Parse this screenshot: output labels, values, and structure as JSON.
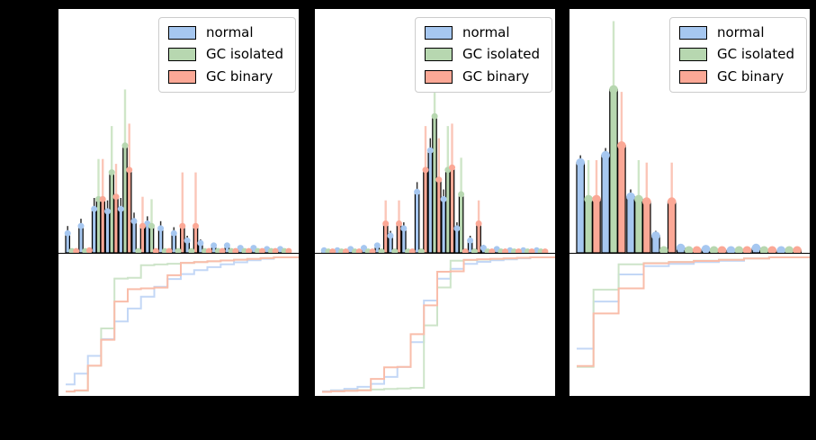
{
  "figure": {
    "background": "#000000",
    "axes_background": "#ffffff",
    "spine_color": "#000000",
    "tick_labels": "none visible (rendered black on black margins)"
  },
  "legend": {
    "position": "upper right",
    "items": [
      {
        "label": "normal",
        "color": "#a6c7f0"
      },
      {
        "label": "GC isolated",
        "color": "#b7d7b0"
      },
      {
        "label": "GC binary",
        "color": "#fba896"
      }
    ]
  },
  "colors": {
    "normal": {
      "fill": "#a6c7f0",
      "light": "#c3d7f6",
      "error": "#2f2f2f"
    },
    "gc_isolated": {
      "fill": "#b7d7b0",
      "light": "#cde4c9",
      "error": "#cfe6c8"
    },
    "gc_binary": {
      "fill": "#fba896",
      "light": "#f9bdaa",
      "error": "#fbc6b8"
    }
  },
  "chart_data": [
    {
      "panel": "left",
      "type": "bar",
      "subplots": [
        "grouped histogram with upper error bars and circle marker caps",
        "cumulative step distribution (cumsum of values / total)"
      ],
      "bins": 17,
      "value_units": "fraction of axes height (no visible tick labels)",
      "series": [
        {
          "name": "normal",
          "color_key": "normal",
          "values": [
            0.08,
            0.11,
            0.18,
            0.17,
            0.18,
            0.13,
            0.12,
            0.1,
            0.08,
            0.05,
            0.04,
            0.03,
            0.03,
            0.02,
            0.02,
            0.015,
            0.015
          ],
          "errors_up": [
            0.03,
            0.03,
            0.045,
            0.045,
            0.045,
            0.035,
            0.03,
            0.03,
            0.025,
            0.02,
            0.015,
            0.012,
            0.012,
            0.01,
            0.01,
            0.008,
            0.008
          ]
        },
        {
          "name": "GC isolated",
          "color_key": "gc_isolated",
          "values": [
            0.007,
            0.007,
            0.22,
            0.33,
            0.44,
            0.007,
            0.11,
            0.007,
            0.007,
            0.007,
            0.007,
            0.007,
            0.007,
            0.007,
            0.007,
            0.007,
            0.007
          ],
          "errors_up": [
            0,
            0,
            0.165,
            0.19,
            0.23,
            0,
            0.11,
            0,
            0,
            0,
            0,
            0,
            0,
            0,
            0,
            0,
            0
          ]
        },
        {
          "name": "GC binary",
          "color_key": "gc_binary",
          "values": [
            0.007,
            0.01,
            0.22,
            0.23,
            0.34,
            0.11,
            0.007,
            0.007,
            0.11,
            0.11,
            0.007,
            0.007,
            0.007,
            0.007,
            0.007,
            0.007,
            0.007
          ],
          "errors_up": [
            0,
            0,
            0.165,
            0.135,
            0.19,
            0.12,
            0,
            0,
            0.22,
            0.22,
            0,
            0,
            0,
            0,
            0,
            0,
            0
          ]
        }
      ]
    },
    {
      "panel": "middle",
      "type": "bar",
      "subplots": [
        "grouped histogram with upper error bars and circle marker caps",
        "cumulative step distribution (cumsum of values / total)"
      ],
      "bins": 17,
      "value_units": "fraction of axes height (no visible tick labels)",
      "series": [
        {
          "name": "normal",
          "color_key": "normal",
          "values": [
            0.01,
            0.01,
            0.015,
            0.02,
            0.03,
            0.07,
            0.1,
            0.25,
            0.42,
            0.22,
            0.1,
            0.05,
            0.02,
            0.015,
            0.01,
            0.01,
            0.01
          ],
          "errors_up": [
            0.008,
            0.008,
            0.01,
            0.01,
            0.012,
            0.02,
            0.025,
            0.04,
            0.05,
            0.04,
            0.025,
            0.02,
            0.012,
            0.01,
            0.008,
            0.008,
            0.008
          ]
        },
        {
          "name": "GC isolated",
          "color_key": "gc_isolated",
          "values": [
            0.005,
            0.005,
            0.005,
            0.005,
            0.005,
            0.005,
            0.005,
            0.005,
            0.56,
            0.34,
            0.24,
            0.005,
            0.005,
            0.005,
            0.005,
            0.005,
            0.005
          ],
          "errors_up": [
            0,
            0,
            0,
            0,
            0,
            0,
            0,
            0,
            0.145,
            0.18,
            0.15,
            0,
            0,
            0,
            0,
            0,
            0
          ]
        },
        {
          "name": "GC binary",
          "color_key": "gc_binary",
          "values": [
            0.005,
            0.005,
            0.005,
            0.005,
            0.12,
            0.12,
            0.005,
            0.34,
            0.3,
            0.35,
            0.005,
            0.12,
            0.005,
            0.005,
            0.005,
            0.005,
            0.005
          ],
          "errors_up": [
            0,
            0,
            0,
            0,
            0.095,
            0.095,
            0,
            0.18,
            0.17,
            0.18,
            0,
            0.095,
            0,
            0,
            0,
            0,
            0
          ]
        }
      ]
    },
    {
      "panel": "right",
      "type": "bar",
      "subplots": [
        "grouped histogram with upper error bars and circle marker caps",
        "cumulative step distribution (cumsum of values / total)"
      ],
      "bins": 9,
      "value_units": "fraction of axes height (no visible tick labels)",
      "series": [
        {
          "name": "normal",
          "color_key": "normal",
          "values": [
            0.37,
            0.4,
            0.23,
            0.07,
            0.02,
            0.015,
            0.01,
            0.02,
            0.01
          ],
          "errors_up": [
            0.03,
            0.03,
            0.03,
            0.02,
            0.01,
            0.01,
            0.008,
            0.01,
            0.008
          ]
        },
        {
          "name": "GC isolated",
          "color_key": "gc_isolated",
          "values": [
            0.22,
            0.67,
            0.22,
            0.01,
            0.01,
            0.01,
            0.01,
            0.01,
            0.01
          ],
          "errors_up": [
            0.16,
            0.28,
            0.16,
            0,
            0,
            0,
            0,
            0,
            0
          ]
        },
        {
          "name": "GC binary",
          "color_key": "gc_binary",
          "values": [
            0.22,
            0.44,
            0.21,
            0.21,
            0.01,
            0.01,
            0.01,
            0.01,
            0.01
          ],
          "errors_up": [
            0.16,
            0.22,
            0.16,
            0.16,
            0,
            0,
            0,
            0,
            0
          ]
        }
      ]
    }
  ]
}
